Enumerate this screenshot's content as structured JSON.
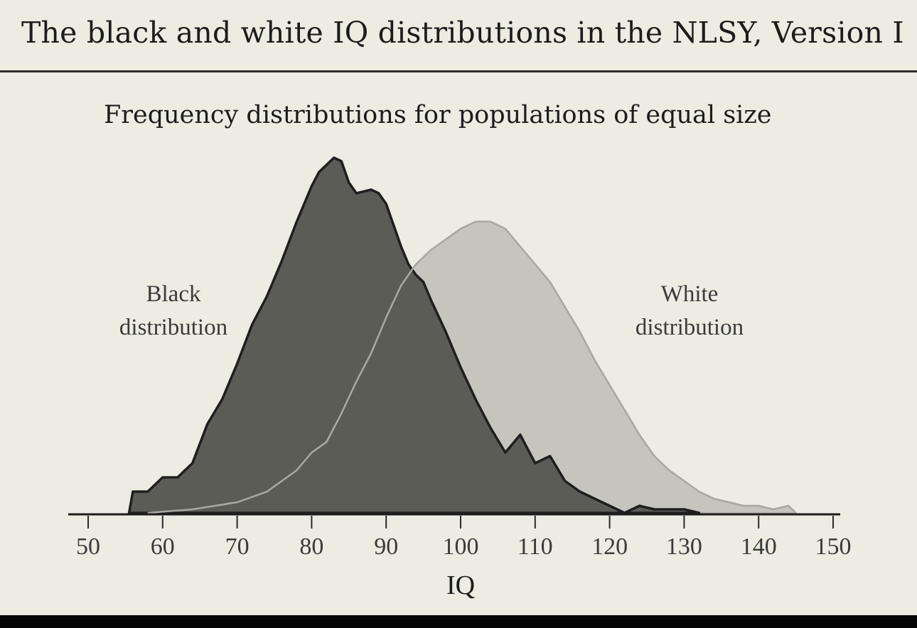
{
  "header": {
    "title": "The black and white IQ distributions in the NLSY, Version I"
  },
  "chart_data": {
    "type": "area",
    "title": "Frequency distributions for populations of equal size",
    "xlabel": "IQ",
    "ylabel": "",
    "xlim": [
      50,
      150
    ],
    "xticks": [
      50,
      60,
      70,
      80,
      90,
      100,
      110,
      120,
      130,
      140,
      150
    ],
    "y_unit": "relative frequency (peak of black distribution = 1.0)",
    "grid": false,
    "legend": "none",
    "annotations": [
      {
        "text": "Black\ndistribution",
        "near_series": "black",
        "lines": [
          "Black",
          "distribution"
        ]
      },
      {
        "text": "White\ndistribution",
        "near_series": "white",
        "lines": [
          "White",
          "distribution"
        ]
      }
    ],
    "series": [
      {
        "name": "",
        "key": "black",
        "color": "#5c5c57",
        "points": [
          [
            55.5,
            0.0
          ],
          [
            56,
            0.06
          ],
          [
            58,
            0.06
          ],
          [
            60,
            0.1
          ],
          [
            62,
            0.1
          ],
          [
            64,
            0.14
          ],
          [
            66,
            0.25
          ],
          [
            68,
            0.32
          ],
          [
            70,
            0.42
          ],
          [
            72,
            0.53
          ],
          [
            74,
            0.61
          ],
          [
            76,
            0.71
          ],
          [
            78,
            0.82
          ],
          [
            80,
            0.92
          ],
          [
            81,
            0.96
          ],
          [
            82,
            0.98
          ],
          [
            83,
            1.0
          ],
          [
            84,
            0.99
          ],
          [
            85,
            0.93
          ],
          [
            86,
            0.9
          ],
          [
            88,
            0.91
          ],
          [
            89,
            0.9
          ],
          [
            90,
            0.87
          ],
          [
            91,
            0.81
          ],
          [
            92,
            0.75
          ],
          [
            93,
            0.7
          ],
          [
            94,
            0.67
          ],
          [
            95,
            0.65
          ],
          [
            96,
            0.6
          ],
          [
            98,
            0.51
          ],
          [
            100,
            0.41
          ],
          [
            102,
            0.32
          ],
          [
            104,
            0.24
          ],
          [
            106,
            0.17
          ],
          [
            108,
            0.22
          ],
          [
            110,
            0.14
          ],
          [
            112,
            0.16
          ],
          [
            114,
            0.09
          ],
          [
            116,
            0.06
          ],
          [
            118,
            0.04
          ],
          [
            120,
            0.02
          ],
          [
            122,
            0.0
          ],
          [
            124,
            0.02
          ],
          [
            126,
            0.01
          ],
          [
            128,
            0.01
          ],
          [
            130,
            0.01
          ],
          [
            132,
            0.0
          ]
        ]
      },
      {
        "name": "",
        "key": "white",
        "color": "#c5c5bd",
        "points": [
          [
            58,
            0.0
          ],
          [
            64,
            0.01
          ],
          [
            70,
            0.03
          ],
          [
            74,
            0.06
          ],
          [
            76,
            0.09
          ],
          [
            78,
            0.12
          ],
          [
            80,
            0.17
          ],
          [
            82,
            0.2
          ],
          [
            84,
            0.28
          ],
          [
            86,
            0.37
          ],
          [
            88,
            0.45
          ],
          [
            90,
            0.55
          ],
          [
            92,
            0.64
          ],
          [
            94,
            0.7
          ],
          [
            96,
            0.74
          ],
          [
            98,
            0.77
          ],
          [
            100,
            0.8
          ],
          [
            102,
            0.82
          ],
          [
            104,
            0.82
          ],
          [
            106,
            0.8
          ],
          [
            108,
            0.75
          ],
          [
            110,
            0.7
          ],
          [
            112,
            0.65
          ],
          [
            114,
            0.58
          ],
          [
            116,
            0.51
          ],
          [
            118,
            0.43
          ],
          [
            120,
            0.36
          ],
          [
            122,
            0.29
          ],
          [
            124,
            0.22
          ],
          [
            126,
            0.16
          ],
          [
            128,
            0.12
          ],
          [
            130,
            0.09
          ],
          [
            132,
            0.06
          ],
          [
            134,
            0.04
          ],
          [
            136,
            0.03
          ],
          [
            138,
            0.02
          ],
          [
            140,
            0.02
          ],
          [
            142,
            0.01
          ],
          [
            144,
            0.02
          ],
          [
            145,
            0.0
          ]
        ]
      }
    ]
  }
}
